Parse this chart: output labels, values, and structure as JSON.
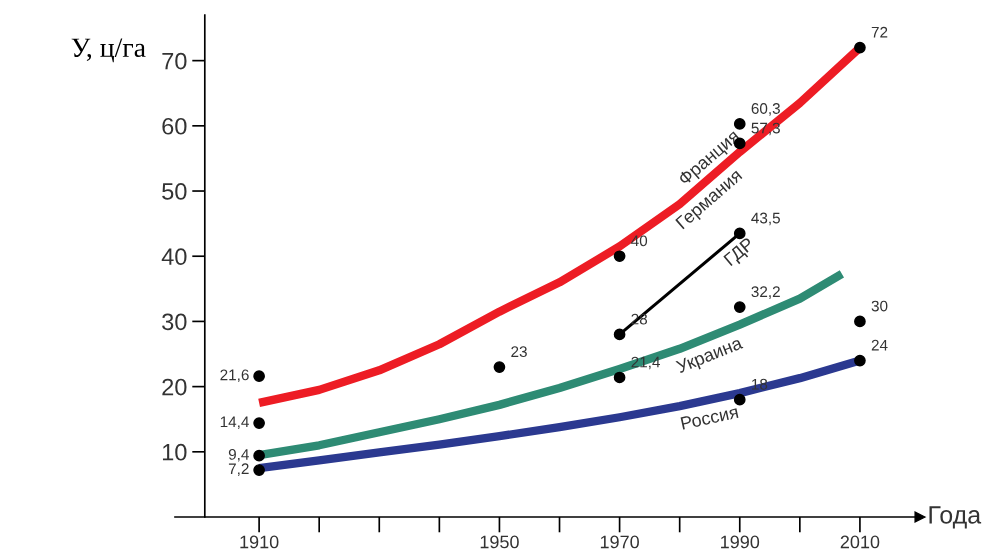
{
  "chart_data": {
    "type": "line",
    "xlabel": "Года",
    "ylabel": "У, ц/га",
    "xlim": [
      1896,
      2020
    ],
    "ylim": [
      0,
      77
    ],
    "xticks": [
      {
        "value": 1910,
        "label": "1910"
      },
      {
        "value": 1920,
        "label": null
      },
      {
        "value": 1930,
        "label": null
      },
      {
        "value": 1940,
        "label": null
      },
      {
        "value": 1950,
        "label": "1950"
      },
      {
        "value": 1960,
        "label": null
      },
      {
        "value": 1970,
        "label": "1970"
      },
      {
        "value": 1980,
        "label": null
      },
      {
        "value": 1990,
        "label": "1990"
      },
      {
        "value": 2000,
        "label": null
      },
      {
        "value": 2010,
        "label": "2010"
      }
    ],
    "yticks": [
      10,
      20,
      30,
      40,
      50,
      60,
      70
    ],
    "grid": false,
    "legend": false,
    "series": [
      {
        "name": "Франция",
        "color": "#ed1c24",
        "x": [
          1910,
          1920,
          1930,
          1940,
          1950,
          1960,
          1970,
          1980,
          1990,
          2000,
          2010
        ],
        "values": [
          17.5,
          19.5,
          22.5,
          26.5,
          31.5,
          36,
          41.5,
          48,
          56,
          63.5,
          72
        ]
      },
      {
        "name": "ГДР",
        "color": "#000000",
        "x": [
          1970,
          1990
        ],
        "values": [
          28,
          43.5
        ]
      },
      {
        "name": "Украина",
        "color": "#2e8b74",
        "x": [
          1910,
          1920,
          1930,
          1940,
          1950,
          1960,
          1970,
          1980,
          1990,
          2000,
          2007
        ],
        "values": [
          9.5,
          11,
          13,
          15,
          17.2,
          19.8,
          22.7,
          25.8,
          29.5,
          33.5,
          37.3
        ]
      },
      {
        "name": "Россия",
        "color": "#2b3990",
        "x": [
          1910,
          1920,
          1930,
          1940,
          1950,
          1960,
          1970,
          1980,
          1990,
          2000,
          2010
        ],
        "values": [
          7.5,
          8.7,
          9.9,
          11.1,
          12.4,
          13.8,
          15.3,
          17,
          19,
          21.3,
          24
        ]
      },
      {
        "type": "scatter",
        "color": "#000000",
        "marker": "circle",
        "x": [
          1910,
          1910,
          1910,
          1910,
          1950,
          1970,
          1970,
          1970,
          1990,
          1990,
          1990,
          1990,
          1990,
          2010,
          2010,
          2010
        ],
        "values": [
          21.6,
          14.4,
          9.4,
          7.2,
          23,
          40,
          28,
          21.4,
          60.3,
          57.3,
          43.5,
          32.2,
          18,
          72,
          30,
          24
        ],
        "value_labels": [
          "21,6",
          "14,4",
          "9,4",
          "7,2",
          "23",
          "40",
          "28",
          "21,4",
          "60,3",
          "57,3",
          "43,5",
          "32,2",
          "18",
          "72",
          "30",
          "24"
        ]
      }
    ],
    "annotations": [
      "Германия"
    ]
  }
}
